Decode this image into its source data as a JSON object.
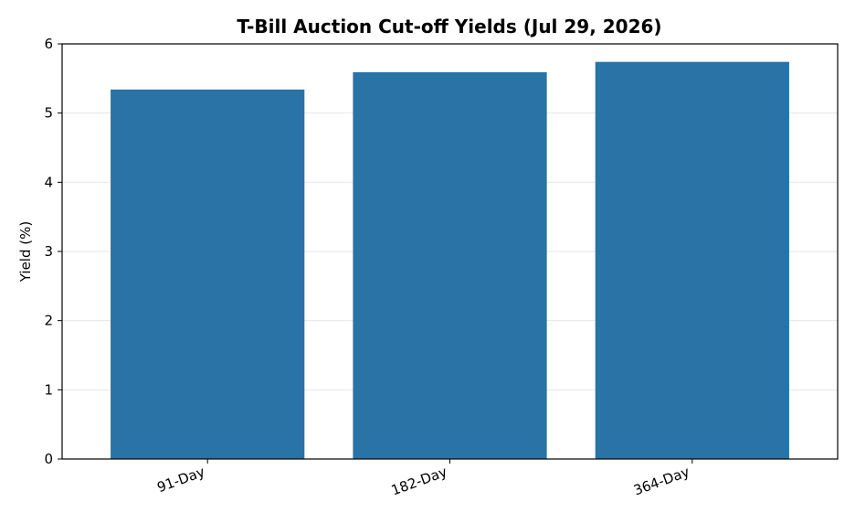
{
  "chart_data": {
    "type": "bar",
    "title": "T-Bill Auction Cut-off Yields (Jul 29, 2026)",
    "xlabel": "",
    "ylabel": "Yield (%)",
    "categories": [
      "91-Day",
      "182-Day",
      "364-Day"
    ],
    "values": [
      5.34,
      5.59,
      5.74
    ],
    "ylim": [
      0,
      6
    ],
    "yticks": [
      0,
      1,
      2,
      3,
      4,
      5,
      6
    ],
    "grid": true,
    "bar_color": "#2a73a6"
  }
}
